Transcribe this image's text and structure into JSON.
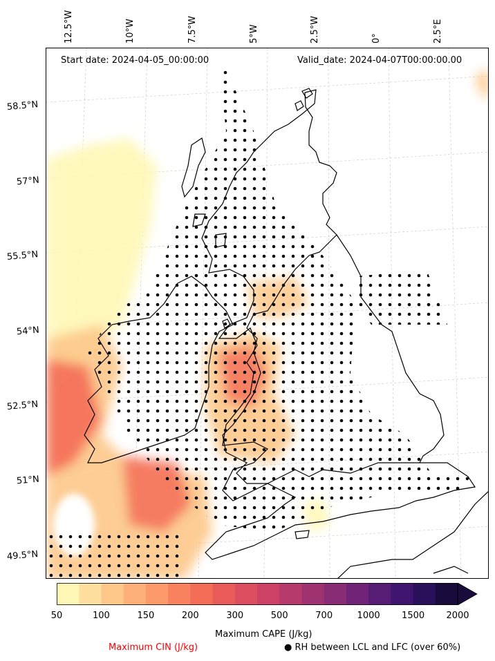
{
  "header": {
    "start_date": "Start date: 2024-04-05_00:00:00",
    "valid_date": "Valid_date: 2024-04-07T00:00:00.00"
  },
  "longitude_labels": [
    "12.5°W",
    "10°W",
    "7.5°W",
    "5°W",
    "2.5°W",
    "0°",
    "2.5°E"
  ],
  "latitude_labels": [
    "58.5°N",
    "57°N",
    "55.5°N",
    "54°N",
    "52.5°N",
    "51°N",
    "49.5°N"
  ],
  "colorbar": {
    "ticks": [
      "50",
      "100",
      "150",
      "200",
      "300",
      "500",
      "700",
      "1000",
      "1500",
      "2000"
    ],
    "colors": [
      "#fff7b6",
      "#fde0a0",
      "#fdc88a",
      "#fdb07a",
      "#fc9a6b",
      "#f9825e",
      "#f46d57",
      "#e95b59",
      "#dc4d5f",
      "#cc4165",
      "#b63a6c",
      "#9f3371",
      "#882c75",
      "#6f2477",
      "#561c76",
      "#3f1570",
      "#2a0f5a",
      "#1a0b3d"
    ],
    "label": "Maximum CAPE (J/kg)"
  },
  "legend": {
    "cin_label": "Maximum CIN (J/kg)",
    "cin_color": "#ff0000",
    "rh_label": "RH between LCL and LFC (over 60%)",
    "rh_marker": "●"
  }
}
